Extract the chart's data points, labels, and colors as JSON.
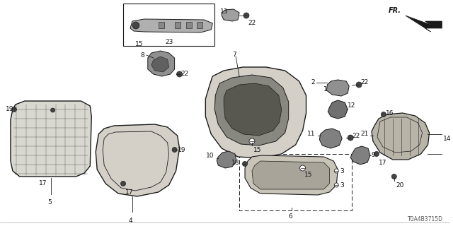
{
  "background_color": "#ffffff",
  "diagram_code": "T0A4B3715D",
  "fig_width": 6.4,
  "fig_height": 3.2,
  "dpi": 100
}
